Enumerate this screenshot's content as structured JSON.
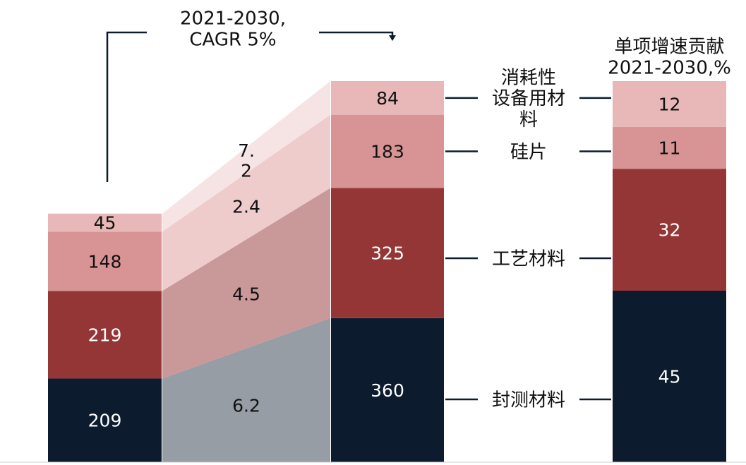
{
  "chart_data": [
    {
      "type": "bar",
      "stacked": true,
      "categories": [
        "",
        ""
      ],
      "series": [
        {
          "name": "封测材料",
          "values": [
            209,
            360
          ]
        },
        {
          "name": "工艺材料",
          "values": [
            219,
            325
          ]
        },
        {
          "name": "硅片",
          "values": [
            148,
            183
          ]
        },
        {
          "name": "消耗性设备用材料",
          "values": [
            45,
            84
          ]
        }
      ],
      "bridge_growth": {
        "values": [
          "6.2",
          "4.5",
          "2.4",
          "7.\n2"
        ]
      },
      "annotation": "2021-2030,\nCAGR 5%",
      "ylim": [
        0,
        1000
      ]
    },
    {
      "type": "bar",
      "stacked": true,
      "title": "单项增速贡献\n2021-2030,%",
      "categories": [
        ""
      ],
      "series": [
        {
          "name": "封测材料",
          "values": [
            45
          ]
        },
        {
          "name": "工艺材料",
          "values": [
            32
          ]
        },
        {
          "name": "硅片",
          "values": [
            11
          ]
        },
        {
          "name": "消耗性设备用材料",
          "values": [
            12
          ]
        }
      ],
      "ylim": [
        0,
        100
      ]
    }
  ],
  "legend_labels": [
    {
      "key": "consumables",
      "text": "消耗性\n设备用材\n料"
    },
    {
      "key": "wafer",
      "text": "硅片"
    },
    {
      "key": "process",
      "text": "工艺材料"
    },
    {
      "key": "packaging",
      "text": "封测材料"
    }
  ],
  "colors": {
    "packaging": "#0c1c2e",
    "process": "#943636",
    "wafer": "#d89494",
    "consumables": "#e8b7b7",
    "bridge_packaging": "#969da5",
    "bridge_process": "#c99899",
    "bridge_wafer": "#efcccc",
    "bridge_consumables": "#f6e4e4",
    "connector_line": "#0c1c2e",
    "label_light": "#ffffff",
    "label_dark": "#111111"
  }
}
